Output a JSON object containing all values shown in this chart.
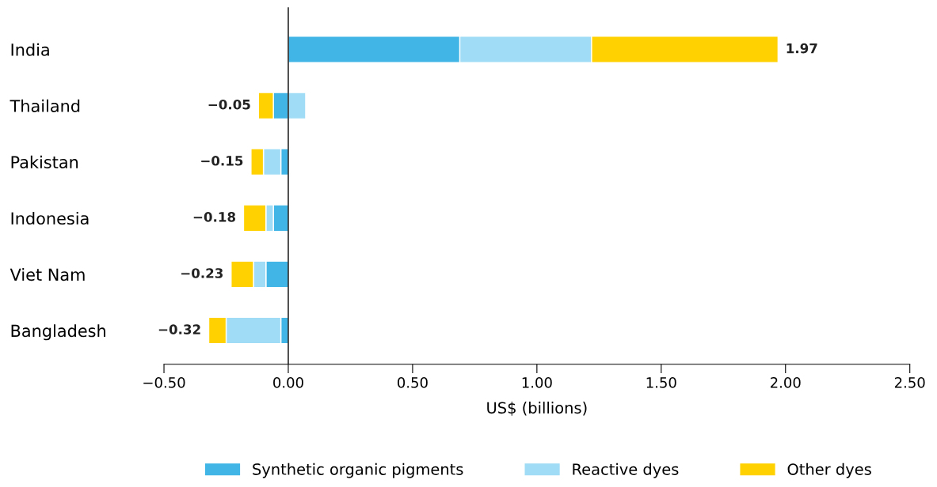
{
  "chart_data": {
    "type": "bar",
    "orientation": "horizontal",
    "stacked": true,
    "categories": [
      "India",
      "Thailand",
      "Pakistan",
      "Indonesia",
      "Viet Nam",
      "Bangladesh"
    ],
    "series": [
      {
        "name": "Synthetic organic pigments",
        "color": "#41b6e6",
        "values": [
          0.69,
          -0.06,
          -0.03,
          -0.06,
          -0.09,
          -0.03
        ]
      },
      {
        "name": "Reactive dyes",
        "color": "#a0dcf5",
        "values": [
          0.53,
          0.07,
          -0.07,
          -0.03,
          -0.05,
          -0.22
        ]
      },
      {
        "name": "Other dyes",
        "color": "#ffd100",
        "values": [
          0.75,
          -0.06,
          -0.05,
          -0.09,
          -0.09,
          -0.07
        ]
      }
    ],
    "totals": [
      "1.97",
      "−0.05",
      "−0.15",
      "−0.18",
      "−0.23",
      "−0.32"
    ],
    "xlabel": "US$ (billions)",
    "xlim": [
      -0.5,
      2.5
    ],
    "xticks": [
      {
        "value": -0.5,
        "label": "−0.50"
      },
      {
        "value": 0,
        "label": "0.00"
      },
      {
        "value": 0.5,
        "label": "0.50"
      },
      {
        "value": 1,
        "label": "1.00"
      },
      {
        "value": 1.5,
        "label": "1.50"
      },
      {
        "value": 2,
        "label": "2.00"
      },
      {
        "value": 2.5,
        "label": "2.50"
      }
    ],
    "ref_lines": [
      {
        "axis": "x",
        "value": 0,
        "color": "#000000"
      }
    ],
    "grid": false,
    "legend": "bottom"
  }
}
